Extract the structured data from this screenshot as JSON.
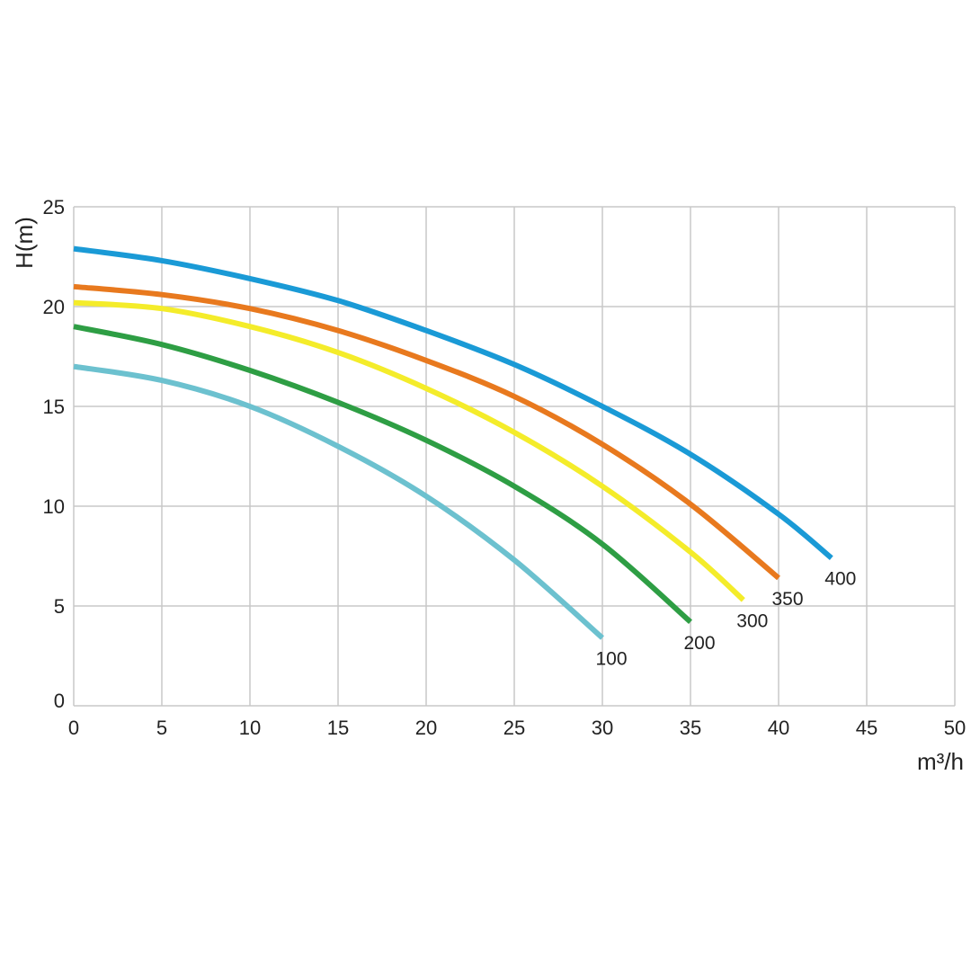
{
  "chart_data": {
    "type": "line",
    "title": "",
    "xlabel": "m³/h",
    "ylabel": "H(m)",
    "xlim": [
      0,
      50
    ],
    "ylim": [
      0,
      25
    ],
    "x_ticks": [
      "0",
      "5",
      "10",
      "15",
      "20",
      "25",
      "30",
      "35",
      "40",
      "45",
      "50"
    ],
    "y_ticks": [
      "0",
      "5",
      "10",
      "15",
      "20",
      "25"
    ],
    "grid": true,
    "legend": "labels at curve ends",
    "series": [
      {
        "name": "100",
        "color": "#6cc1cf",
        "x": [
          0,
          5,
          10,
          15,
          20,
          25,
          30
        ],
        "y": [
          17.0,
          16.3,
          15.0,
          13.0,
          10.5,
          7.3,
          3.4
        ]
      },
      {
        "name": "200",
        "color": "#2e9e44",
        "x": [
          0,
          5,
          10,
          15,
          20,
          25,
          30,
          35
        ],
        "y": [
          19.0,
          18.1,
          16.8,
          15.2,
          13.3,
          11.0,
          8.1,
          4.2
        ]
      },
      {
        "name": "300",
        "color": "#f4ec2a",
        "x": [
          0,
          5,
          10,
          15,
          20,
          25,
          30,
          35,
          38
        ],
        "y": [
          20.2,
          19.9,
          19.0,
          17.7,
          15.9,
          13.7,
          11.0,
          7.7,
          5.3
        ]
      },
      {
        "name": "350",
        "color": "#e8791e",
        "x": [
          0,
          5,
          10,
          15,
          20,
          25,
          30,
          35,
          40
        ],
        "y": [
          21.0,
          20.6,
          19.9,
          18.8,
          17.3,
          15.5,
          13.1,
          10.1,
          6.4
        ]
      },
      {
        "name": "400",
        "color": "#1a9ad6",
        "x": [
          0,
          5,
          10,
          15,
          20,
          25,
          30,
          35,
          40,
          43
        ],
        "y": [
          22.9,
          22.3,
          21.4,
          20.3,
          18.8,
          17.1,
          15.0,
          12.6,
          9.6,
          7.4
        ]
      }
    ]
  }
}
